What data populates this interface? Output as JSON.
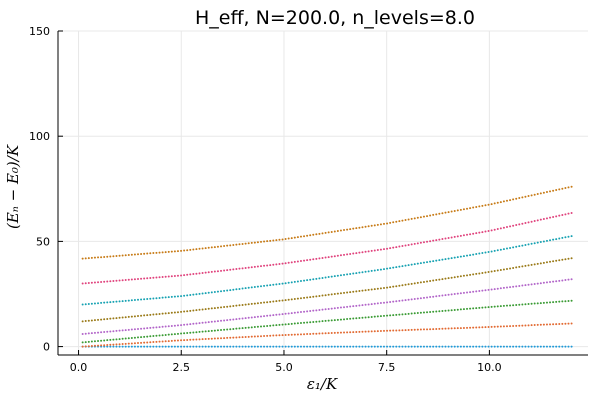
{
  "chart_data": {
    "type": "scatter",
    "title": "H_eff, N=200.0, n_levels=8.0",
    "xlabel": "ε₁/K",
    "ylabel": "(Eₙ − E₀)/K",
    "xlim": [
      -0.5,
      12.4
    ],
    "ylim": [
      -4,
      150
    ],
    "xticks": [
      0.0,
      2.5,
      5.0,
      7.5,
      10.0
    ],
    "yticks": [
      0,
      50,
      100,
      150
    ],
    "xtick_labels": [
      "0.0",
      "2.5",
      "5.0",
      "7.5",
      "10.0"
    ],
    "ytick_labels": [
      "0",
      "50",
      "100",
      "150"
    ],
    "grid": true,
    "legend": "none",
    "x": [
      0.1,
      2.5,
      5.0,
      7.5,
      10.0,
      12.0
    ],
    "series": [
      {
        "values": [
          0.0,
          0.0,
          0.0,
          0.0,
          0.0,
          0.0
        ],
        "color": "#1f9ad8"
      },
      {
        "values": [
          0.0,
          3.0,
          5.5,
          7.5,
          9.3,
          11.0
        ],
        "color": "#e26a32"
      },
      {
        "values": [
          2.0,
          6.2,
          10.5,
          14.7,
          18.8,
          21.8
        ],
        "color": "#3a9b34"
      },
      {
        "values": [
          6.0,
          10.2,
          15.5,
          21.0,
          27.0,
          32.0
        ],
        "color": "#b265c9"
      },
      {
        "values": [
          12.0,
          16.5,
          22.0,
          28.0,
          35.5,
          42.0
        ],
        "color": "#9a7a18"
      },
      {
        "values": [
          20.0,
          24.0,
          30.0,
          37.0,
          45.0,
          52.5
        ],
        "color": "#17a2b2"
      },
      {
        "values": [
          30.0,
          33.8,
          39.5,
          46.5,
          55.0,
          63.5
        ],
        "color": "#e0437d"
      },
      {
        "values": [
          41.8,
          45.5,
          51.0,
          58.5,
          67.5,
          76.0
        ],
        "color": "#c77b17"
      }
    ]
  }
}
